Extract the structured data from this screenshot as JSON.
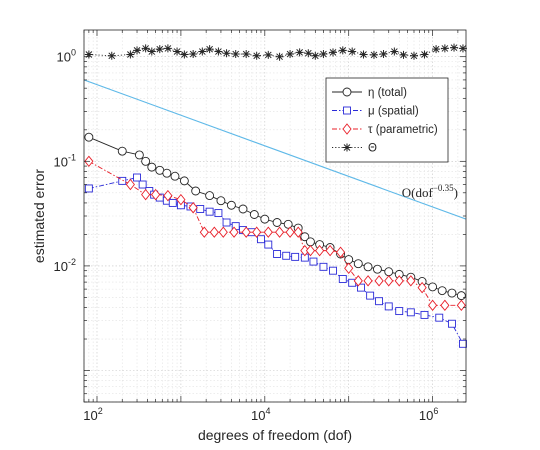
{
  "chart_data": {
    "type": "line",
    "title": "",
    "xlabel": "degrees of freedom (dof)",
    "ylabel": "estimated error",
    "xscale": "log",
    "yscale": "log",
    "xlim": [
      70,
      2500000
    ],
    "ylim": [
      0.0005,
      1.8
    ],
    "xticks": [
      100,
      10000,
      1000000
    ],
    "xtick_labels": [
      {
        "base": "10",
        "exp": "2"
      },
      {
        "base": "10",
        "exp": "4"
      },
      {
        "base": "10",
        "exp": "6"
      }
    ],
    "yticks": [
      0.01,
      0.1,
      1
    ],
    "ytick_labels": [
      {
        "base": "10",
        "exp": "-2"
      },
      {
        "base": "10",
        "exp": "-1"
      },
      {
        "base": "10",
        "exp": "0"
      }
    ],
    "grid": "major and minor, dotted",
    "legend_position": "top-right",
    "annotation": {
      "text": "O(dof",
      "exp": "−0.35",
      "close": ")"
    },
    "reference_line": {
      "x": [
        70,
        2500000
      ],
      "y": [
        0.6,
        0.028
      ],
      "color": "#5fb9e8"
    },
    "series": [
      {
        "name": "η (total)",
        "marker": "circle",
        "line": "solid",
        "color": "#262626",
        "x": [
          80,
          200,
          320,
          380,
          450,
          560,
          680,
          850,
          1100,
          1500,
          2200,
          3000,
          4000,
          5500,
          7500,
          10000,
          14000,
          19000,
          25000,
          30000,
          35000,
          45000,
          60000,
          80000,
          100000,
          130000,
          170000,
          220000,
          300000,
          400000,
          550000,
          750000,
          1000000,
          1300000,
          1700000,
          2200000
        ],
        "y": [
          0.17,
          0.125,
          0.115,
          0.1,
          0.088,
          0.082,
          0.077,
          0.072,
          0.065,
          0.052,
          0.047,
          0.042,
          0.038,
          0.035,
          0.031,
          0.028,
          0.026,
          0.025,
          0.023,
          0.019,
          0.017,
          0.016,
          0.015,
          0.013,
          0.0115,
          0.0105,
          0.0098,
          0.0093,
          0.0088,
          0.0083,
          0.0078,
          0.0071,
          0.0063,
          0.0058,
          0.0055,
          0.0052
        ]
      },
      {
        "name": "μ (spatial)",
        "marker": "square",
        "line": "dashdot",
        "color": "#2b2bd8",
        "x": [
          80,
          200,
          300,
          350,
          420,
          480,
          560,
          680,
          800,
          1000,
          1300,
          1700,
          2200,
          2800,
          3500,
          4500,
          5500,
          7000,
          9000,
          11000,
          14000,
          18000,
          23000,
          30000,
          38000,
          50000,
          65000,
          85000,
          110000,
          140000,
          180000,
          230000,
          300000,
          400000,
          550000,
          800000,
          1200000,
          1700000,
          2300000
        ],
        "y": [
          0.055,
          0.065,
          0.07,
          0.06,
          0.052,
          0.048,
          0.045,
          0.042,
          0.04,
          0.038,
          0.037,
          0.035,
          0.033,
          0.032,
          0.026,
          0.024,
          0.022,
          0.021,
          0.018,
          0.016,
          0.013,
          0.0125,
          0.0122,
          0.012,
          0.011,
          0.0098,
          0.009,
          0.0075,
          0.0069,
          0.0062,
          0.0052,
          0.0046,
          0.0041,
          0.0037,
          0.0036,
          0.0034,
          0.0032,
          0.0028,
          0.0018
        ]
      },
      {
        "name": "τ (parametric)",
        "marker": "diamond",
        "line": "dashdot",
        "color": "#e8202a",
        "x": [
          80,
          250,
          380,
          500,
          700,
          1000,
          1400,
          1900,
          2500,
          3200,
          4300,
          6000,
          8000,
          11000,
          15000,
          20000,
          25000,
          30000,
          35000,
          45000,
          60000,
          80000,
          100000,
          130000,
          170000,
          230000,
          300000,
          400000,
          550000,
          750000,
          1000000,
          1400000,
          2200000
        ],
        "y": [
          0.1,
          0.06,
          0.048,
          0.048,
          0.047,
          0.043,
          0.036,
          0.021,
          0.021,
          0.021,
          0.021,
          0.021,
          0.021,
          0.021,
          0.021,
          0.021,
          0.021,
          0.014,
          0.014,
          0.014,
          0.014,
          0.0135,
          0.0095,
          0.0072,
          0.0072,
          0.0072,
          0.0072,
          0.0072,
          0.0072,
          0.0062,
          0.0042,
          0.0042,
          0.0042
        ]
      },
      {
        "name": "Θ",
        "marker": "asterisk",
        "line": "dotted",
        "color": "#262626",
        "x": [
          80,
          150,
          250,
          300,
          380,
          450,
          560,
          700,
          900,
          1100,
          1400,
          1800,
          2200,
          2800,
          3500,
          4500,
          6000,
          8000,
          11000,
          15000,
          20000,
          26000,
          33000,
          40000,
          50000,
          65000,
          85000,
          110000,
          150000,
          200000,
          260000,
          350000,
          450000,
          600000,
          800000,
          1100000,
          1400000,
          1800000,
          2300000
        ],
        "y": [
          1.05,
          1.02,
          1.05,
          1.15,
          1.2,
          1.12,
          1.18,
          1.2,
          1.12,
          1.05,
          1.06,
          1.12,
          1.18,
          1.12,
          1.08,
          1.06,
          1.06,
          1.02,
          1.04,
          1.0,
          1.06,
          1.1,
          1.08,
          1.02,
          1.06,
          1.1,
          1.15,
          1.12,
          1.05,
          1.04,
          1.06,
          1.12,
          1.04,
          1.02,
          1.05,
          1.18,
          1.2,
          1.22,
          1.2
        ]
      }
    ]
  }
}
